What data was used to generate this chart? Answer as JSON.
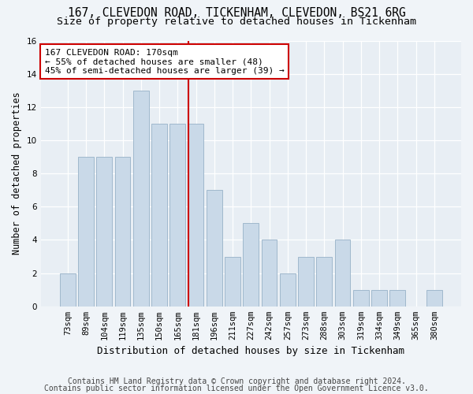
{
  "title1": "167, CLEVEDON ROAD, TICKENHAM, CLEVEDON, BS21 6RG",
  "title2": "Size of property relative to detached houses in Tickenham",
  "xlabel": "Distribution of detached houses by size in Tickenham",
  "ylabel": "Number of detached properties",
  "categories": [
    "73sqm",
    "89sqm",
    "104sqm",
    "119sqm",
    "135sqm",
    "150sqm",
    "165sqm",
    "181sqm",
    "196sqm",
    "211sqm",
    "227sqm",
    "242sqm",
    "257sqm",
    "273sqm",
    "288sqm",
    "303sqm",
    "319sqm",
    "334sqm",
    "349sqm",
    "365sqm",
    "380sqm"
  ],
  "values": [
    2,
    9,
    9,
    9,
    13,
    11,
    11,
    11,
    7,
    3,
    5,
    4,
    2,
    3,
    3,
    4,
    1,
    1,
    1,
    0,
    1
  ],
  "bar_color": "#c9d9e8",
  "bar_edge_color": "#a0b8cc",
  "vline_color": "#cc0000",
  "annotation_text": "167 CLEVEDON ROAD: 170sqm\n← 55% of detached houses are smaller (48)\n45% of semi-detached houses are larger (39) →",
  "annotation_box_color": "#ffffff",
  "annotation_box_edge_color": "#cc0000",
  "ylim": [
    0,
    16
  ],
  "yticks": [
    0,
    2,
    4,
    6,
    8,
    10,
    12,
    14,
    16
  ],
  "footer1": "Contains HM Land Registry data © Crown copyright and database right 2024.",
  "footer2": "Contains public sector information licensed under the Open Government Licence v3.0.",
  "fig_bg_color": "#f0f4f8",
  "plot_bg_color": "#e8eef4",
  "title1_fontsize": 10.5,
  "title2_fontsize": 9.5,
  "xlabel_fontsize": 9,
  "ylabel_fontsize": 8.5,
  "tick_fontsize": 7.5,
  "footer_fontsize": 7,
  "annotation_fontsize": 8,
  "vline_bar_index": 7
}
